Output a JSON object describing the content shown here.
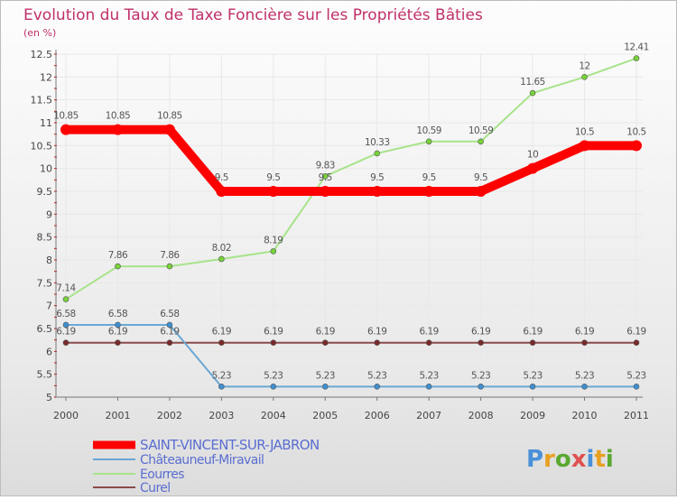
{
  "chart_data": {
    "type": "line",
    "title": "Evolution du Taux de Taxe Foncière sur les Propriétés Bâties",
    "ylabel": "(en %)",
    "xlabel": "",
    "categories": [
      "2000",
      "2001",
      "2002",
      "2003",
      "2004",
      "2005",
      "2006",
      "2007",
      "2008",
      "2009",
      "2010",
      "2011"
    ],
    "ylim": [
      5,
      12.5
    ],
    "yticks": [
      "5",
      "5.5",
      "6",
      "6.5",
      "7",
      "7.5",
      "8",
      "8.5",
      "9",
      "9.5",
      "10",
      "10.5",
      "11",
      "11.5",
      "12",
      "12.5"
    ],
    "grid": true,
    "legend_position": "bottom-left",
    "series": [
      {
        "name": "SAINT-VINCENT-SUR-JABRON",
        "color": "#ff0000",
        "marker_color": "#ff0000",
        "values": [
          10.85,
          10.85,
          10.85,
          9.5,
          9.5,
          9.5,
          9.5,
          9.5,
          9.5,
          10,
          10.5,
          10.5
        ],
        "labels": [
          "10.85",
          "10.85",
          "10.85",
          "9.5",
          "9.5",
          "9.5",
          "9.5",
          "9.5",
          "9.5",
          "10",
          "10.5",
          "10.5"
        ]
      },
      {
        "name": "Châteauneuf-Miravail",
        "color": "#6aa7d4",
        "marker_color": "#3f8fd1",
        "values": [
          6.58,
          6.58,
          6.58,
          5.23,
          5.23,
          5.23,
          5.23,
          5.23,
          5.23,
          5.23,
          5.23,
          5.23
        ],
        "labels": [
          "6.58",
          "6.58",
          "6.58",
          "5.23",
          "5.23",
          "5.23",
          "5.23",
          "5.23",
          "5.23",
          "5.23",
          "5.23",
          "5.23"
        ]
      },
      {
        "name": "Eourres",
        "color": "#a8e38a",
        "marker_color": "#78d23a",
        "values": [
          7.14,
          7.86,
          7.86,
          8.02,
          8.19,
          9.83,
          10.33,
          10.59,
          10.59,
          11.65,
          12,
          12.41
        ],
        "labels": [
          "7.14",
          "7.86",
          "7.86",
          "8.02",
          "8.19",
          "9.83",
          "10.33",
          "10.59",
          "10.59",
          "11.65",
          "12",
          "12.41"
        ]
      },
      {
        "name": "Curel",
        "color": "#8b4a4a",
        "marker_color": "#7a2a2a",
        "values": [
          6.19,
          6.19,
          6.19,
          6.19,
          6.19,
          6.19,
          6.19,
          6.19,
          6.19,
          6.19,
          6.19,
          6.19
        ],
        "labels": [
          "6.19",
          "6.19",
          "6.19",
          "6.19",
          "6.19",
          "6.19",
          "6.19",
          "6.19",
          "6.19",
          "6.19",
          "6.19",
          "6.19"
        ]
      }
    ]
  },
  "colors": {
    "title": "#c0306a",
    "legend_text": "#5a6ed0",
    "axis": "#777777",
    "grid": "#e8e8e8",
    "tick_mark": "#cc0000"
  },
  "logo": {
    "letters": [
      "P",
      "r",
      "o",
      "x",
      "i",
      "t",
      "i"
    ],
    "colors": [
      "#4a90d9",
      "#e8a020",
      "#5aa830",
      "#e05050",
      "#4a90d9",
      "#e8a020",
      "#5aa830"
    ]
  }
}
